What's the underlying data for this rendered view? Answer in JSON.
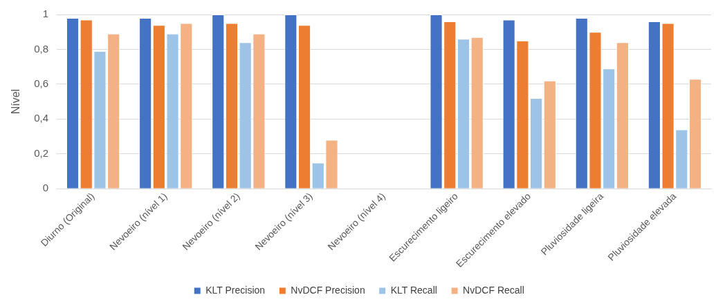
{
  "chart_data": {
    "type": "bar",
    "ylabel": "Nível",
    "categories": [
      "Diurno (Original)",
      "Nevoeiro (nível 1)",
      "Nevoeiro (nível 2)",
      "Nevoeiro (nível 3)",
      "Nevoeiro (nível 4)",
      "Escurecimento ligeiro",
      "Escurecimento elevado",
      "Pluviosidade ligeira",
      "Pluviosidade elevada"
    ],
    "series": [
      {
        "name": "KLT Precision",
        "color": "#4472c4",
        "values": [
          0.98,
          0.98,
          1,
          1,
          null,
          1,
          0.97,
          0.98,
          0.96
        ]
      },
      {
        "name": "NvDCF Precision",
        "color": "#ed7d31",
        "values": [
          0.97,
          0.94,
          0.95,
          0.94,
          null,
          0.96,
          0.85,
          0.9,
          0.95
        ]
      },
      {
        "name": "KLT Recall",
        "color": "#9dc3e6",
        "values": [
          0.79,
          0.89,
          0.84,
          0.15,
          null,
          0.86,
          0.52,
          0.69,
          0.34
        ]
      },
      {
        "name": "NvDCF Recall",
        "color": "#f4b183",
        "values": [
          0.89,
          0.95,
          0.89,
          0.28,
          null,
          0.87,
          0.62,
          0.84,
          0.63
        ]
      }
    ],
    "ylim": [
      0,
      1
    ],
    "yticks": [
      0,
      {
        "value": 0.2,
        "label": "0,2"
      },
      {
        "value": 0.4,
        "label": "0,4"
      },
      {
        "value": 0.6,
        "label": "0,6"
      },
      {
        "value": 0.8,
        "label": "0,8"
      },
      1
    ],
    "grid": "y",
    "legend": "bottom"
  }
}
